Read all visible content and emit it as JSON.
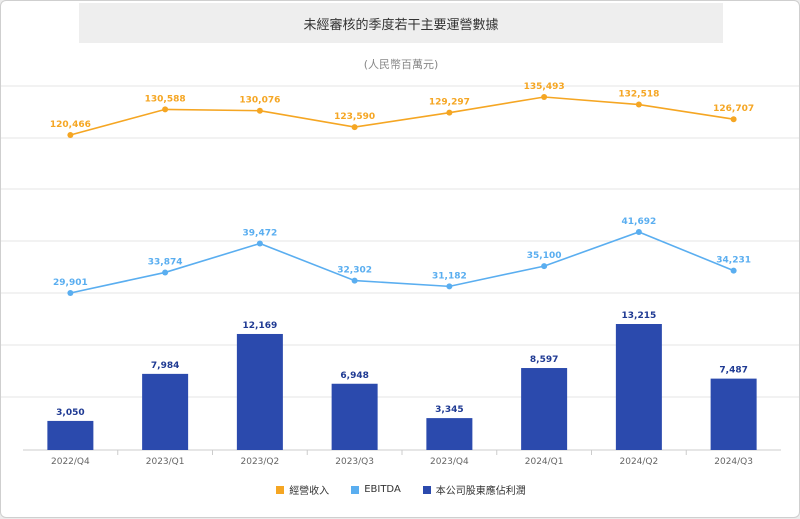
{
  "chart_data": {
    "type": "bar+line",
    "title": "未經審核的季度若干主要運營數據",
    "subtitle": "(人民幣百萬元)",
    "categories": [
      "2022/Q4",
      "2023/Q1",
      "2023/Q2",
      "2023/Q3",
      "2023/Q4",
      "2024/Q1",
      "2024/Q2",
      "2024/Q3"
    ],
    "series": [
      {
        "name": "經營收入",
        "kind": "line",
        "color": "#f5a623",
        "values": [
          120466,
          130588,
          130076,
          123590,
          129297,
          135493,
          132518,
          126707
        ],
        "labels": [
          "120,466",
          "130,588",
          "130,076",
          "123,590",
          "129,297",
          "135,493",
          "132,518",
          "126,707"
        ]
      },
      {
        "name": "EBITDA",
        "kind": "line",
        "color": "#5aaef0",
        "values": [
          29901,
          33874,
          39472,
          32302,
          31182,
          35100,
          41692,
          34231
        ],
        "labels": [
          "29,901",
          "33,874",
          "39,472",
          "32,302",
          "31,182",
          "35,100",
          "41,692",
          "34,231"
        ]
      },
      {
        "name": "本公司股東應佔利潤",
        "kind": "bar",
        "color": "#2b4aad",
        "values": [
          3050,
          7984,
          12169,
          6948,
          3345,
          8597,
          13215,
          7487
        ],
        "labels": [
          "3,050",
          "7,984",
          "12,169",
          "6,948",
          "3,345",
          "8,597",
          "13,215",
          "7,487"
        ]
      }
    ],
    "legend_position": "bottom-center",
    "grid": true
  }
}
